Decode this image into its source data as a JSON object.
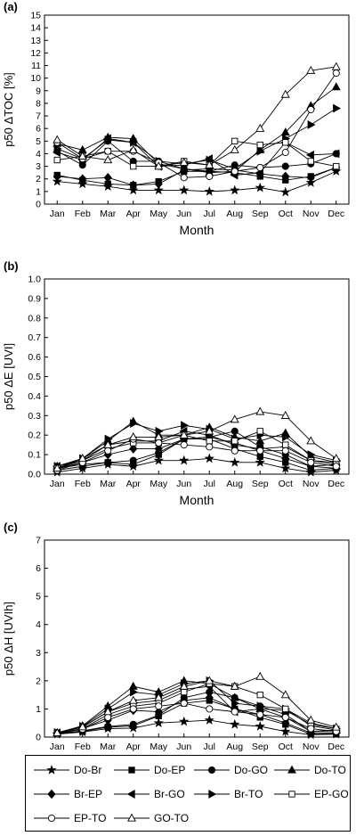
{
  "chart_data": [
    {
      "type": "line",
      "panel_label": "(a)",
      "ylabel": "p50 ΔTOC [%]",
      "xlabel": "Month",
      "ylim": [
        0,
        15
      ],
      "yticks": [
        0,
        1,
        2,
        3,
        4,
        5,
        6,
        7,
        8,
        9,
        10,
        11,
        12,
        13,
        14,
        15
      ],
      "categories": [
        "Jan",
        "Feb",
        "Mar",
        "Apr",
        "May",
        "Jun",
        "Jul",
        "Aug",
        "Sep",
        "Oct",
        "Nov",
        "Dec"
      ],
      "series": [
        {
          "name": "Do-Br",
          "values": [
            1.8,
            1.6,
            1.4,
            1.1,
            1.1,
            1.1,
            1.0,
            1.1,
            1.3,
            0.95,
            1.7,
            2.6
          ]
        },
        {
          "name": "Do-EP",
          "values": [
            2.3,
            1.9,
            1.6,
            1.5,
            1.8,
            2.6,
            2.6,
            2.5,
            2.2,
            1.9,
            2.2,
            2.9
          ]
        },
        {
          "name": "Do-GO",
          "values": [
            4.2,
            3.1,
            5.0,
            3.4,
            3.4,
            2.8,
            2.6,
            3.1,
            2.9,
            3.0,
            3.2,
            4.0
          ]
        },
        {
          "name": "Do-TO",
          "values": [
            4.8,
            4.3,
            5.3,
            5.2,
            3.2,
            2.8,
            2.5,
            2.6,
            4.3,
            5.7,
            7.8,
            9.3
          ]
        },
        {
          "name": "Br-EP",
          "values": [
            2.2,
            2.0,
            2.1,
            1.5,
            1.6,
            2.7,
            2.8,
            2.7,
            2.4,
            2.2,
            2.1,
            2.9
          ]
        },
        {
          "name": "Br-GO",
          "values": [
            4.1,
            3.5,
            5.2,
            4.9,
            3.0,
            3.1,
            3.6,
            2.3,
            2.5,
            4.9,
            3.9,
            4.0
          ]
        },
        {
          "name": "Br-TO",
          "values": [
            4.4,
            3.6,
            5.1,
            4.9,
            3.4,
            3.2,
            3.5,
            2.8,
            4.2,
            5.2,
            6.3,
            7.6
          ]
        },
        {
          "name": "EP-GO",
          "values": [
            3.5,
            3.8,
            4.2,
            3.0,
            3.0,
            3.4,
            3.1,
            5.0,
            4.7,
            4.9,
            3.4,
            3.0
          ]
        },
        {
          "name": "EP-TO",
          "values": [
            4.9,
            3.6,
            4.2,
            4.2,
            3.3,
            2.1,
            2.2,
            2.6,
            2.9,
            4.1,
            7.5,
            10.4
          ]
        },
        {
          "name": "GO-TO",
          "values": [
            5.1,
            3.8,
            3.5,
            4.3,
            3.0,
            3.3,
            3.1,
            4.3,
            6.0,
            8.7,
            10.6,
            10.9
          ]
        }
      ]
    },
    {
      "type": "line",
      "panel_label": "(b)",
      "ylabel": "p50 ΔE [UVI]",
      "xlabel": "Month",
      "ylim": [
        0,
        1.0
      ],
      "yticks": [
        0.0,
        0.1,
        0.2,
        0.3,
        0.4,
        0.5,
        0.6,
        0.7,
        0.8,
        0.9,
        1.0
      ],
      "categories": [
        "Jan",
        "Feb",
        "Mar",
        "Apr",
        "May",
        "Jun",
        "Jul",
        "Aug",
        "Sep",
        "Oct",
        "Nov",
        "Dec"
      ],
      "series": [
        {
          "name": "Do-Br",
          "values": [
            0.01,
            0.03,
            0.05,
            0.04,
            0.07,
            0.07,
            0.08,
            0.06,
            0.06,
            0.03,
            0.01,
            0.02
          ]
        },
        {
          "name": "Do-EP",
          "values": [
            0.02,
            0.04,
            0.06,
            0.05,
            0.1,
            0.18,
            0.18,
            0.13,
            0.09,
            0.06,
            0.02,
            0.03
          ]
        },
        {
          "name": "Do-GO",
          "values": [
            0.03,
            0.05,
            0.06,
            0.07,
            0.11,
            0.18,
            0.19,
            0.22,
            0.14,
            0.1,
            0.04,
            0.05
          ]
        },
        {
          "name": "Do-TO",
          "values": [
            0.04,
            0.08,
            0.17,
            0.27,
            0.2,
            0.2,
            0.24,
            0.19,
            0.17,
            0.21,
            0.09,
            0.06
          ]
        },
        {
          "name": "Br-EP",
          "values": [
            0.03,
            0.06,
            0.1,
            0.13,
            0.13,
            0.18,
            0.19,
            0.16,
            0.12,
            0.08,
            0.04,
            0.03
          ]
        },
        {
          "name": "Br-GO",
          "values": [
            0.04,
            0.07,
            0.15,
            0.17,
            0.17,
            0.22,
            0.2,
            0.15,
            0.13,
            0.14,
            0.07,
            0.06
          ]
        },
        {
          "name": "Br-TO",
          "values": [
            0.04,
            0.08,
            0.18,
            0.26,
            0.22,
            0.25,
            0.23,
            0.18,
            0.2,
            0.19,
            0.1,
            0.07
          ]
        },
        {
          "name": "EP-GO",
          "values": [
            0.03,
            0.07,
            0.13,
            0.16,
            0.16,
            0.2,
            0.17,
            0.17,
            0.22,
            0.15,
            0.07,
            0.05
          ]
        },
        {
          "name": "EP-TO",
          "values": [
            0.02,
            0.06,
            0.12,
            0.18,
            0.16,
            0.15,
            0.14,
            0.12,
            0.12,
            0.12,
            0.06,
            0.04
          ]
        },
        {
          "name": "GO-TO",
          "values": [
            0.03,
            0.08,
            0.15,
            0.19,
            0.19,
            0.2,
            0.22,
            0.28,
            0.32,
            0.3,
            0.17,
            0.08
          ]
        }
      ]
    },
    {
      "type": "line",
      "panel_label": "(c)",
      "ylabel": "p50 ΔH [UVIh]",
      "xlabel": "Month",
      "ylim": [
        0,
        7
      ],
      "yticks": [
        0,
        1,
        2,
        3,
        4,
        5,
        6,
        7
      ],
      "categories": [
        "Jan",
        "Feb",
        "Mar",
        "Apr",
        "May",
        "Jun",
        "Jul",
        "Aug",
        "Sep",
        "Oct",
        "Nov",
        "Dec"
      ],
      "series": [
        {
          "name": "Do-Br",
          "values": [
            0.1,
            0.18,
            0.3,
            0.32,
            0.5,
            0.55,
            0.6,
            0.45,
            0.38,
            0.2,
            0.08,
            0.1
          ]
        },
        {
          "name": "Do-EP",
          "values": [
            0.12,
            0.2,
            0.35,
            0.4,
            0.75,
            1.2,
            1.3,
            1.0,
            0.7,
            0.45,
            0.1,
            0.12
          ]
        },
        {
          "name": "Do-GO",
          "values": [
            0.12,
            0.22,
            0.38,
            0.45,
            0.78,
            1.4,
            1.6,
            1.4,
            1.1,
            0.8,
            0.2,
            0.22
          ]
        },
        {
          "name": "Do-TO",
          "values": [
            0.15,
            0.4,
            1.1,
            1.8,
            1.6,
            2.0,
            1.9,
            1.4,
            1.0,
            0.95,
            0.45,
            0.3
          ]
        },
        {
          "name": "Br-EP",
          "values": [
            0.14,
            0.3,
            0.6,
            0.95,
            0.9,
            1.3,
            1.4,
            1.0,
            0.8,
            0.5,
            0.15,
            0.15
          ]
        },
        {
          "name": "Br-GO",
          "values": [
            0.15,
            0.35,
            0.9,
            1.2,
            1.3,
            1.7,
            1.8,
            0.9,
            1.0,
            0.7,
            0.2,
            0.25
          ]
        },
        {
          "name": "Br-TO",
          "values": [
            0.16,
            0.38,
            1.0,
            1.6,
            1.5,
            1.9,
            2.0,
            1.2,
            1.1,
            1.0,
            0.5,
            0.3
          ]
        },
        {
          "name": "EP-GO",
          "values": [
            0.14,
            0.3,
            0.8,
            1.1,
            1.2,
            1.6,
            1.9,
            1.8,
            1.5,
            1.0,
            0.4,
            0.25
          ]
        },
        {
          "name": "EP-TO",
          "values": [
            0.12,
            0.28,
            0.7,
            1.0,
            1.1,
            1.2,
            1.0,
            0.9,
            0.8,
            0.7,
            0.3,
            0.2
          ]
        },
        {
          "name": "GO-TO",
          "values": [
            0.15,
            0.36,
            0.9,
            1.3,
            1.4,
            1.8,
            2.0,
            1.8,
            2.15,
            1.5,
            0.6,
            0.35
          ]
        }
      ]
    }
  ],
  "legend": {
    "items": [
      {
        "name": "Do-Br",
        "marker": "star"
      },
      {
        "name": "Do-EP",
        "marker": "square-filled"
      },
      {
        "name": "Do-GO",
        "marker": "circle-filled"
      },
      {
        "name": "Do-TO",
        "marker": "triangle-up-filled"
      },
      {
        "name": "Br-EP",
        "marker": "diamond-filled"
      },
      {
        "name": "Br-GO",
        "marker": "triangle-left-filled"
      },
      {
        "name": "Br-TO",
        "marker": "triangle-right-filled"
      },
      {
        "name": "EP-GO",
        "marker": "square-open"
      },
      {
        "name": "EP-TO",
        "marker": "circle-open"
      },
      {
        "name": "GO-TO",
        "marker": "triangle-up-open"
      }
    ]
  },
  "colors": {
    "line": "#000000",
    "background": "#ffffff"
  }
}
